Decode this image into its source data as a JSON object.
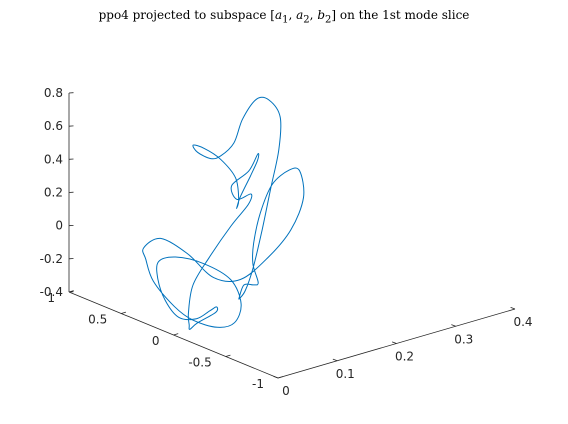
{
  "chart_data": {
    "type": "line",
    "projection": "3d",
    "title": "ppo4 projected to subspace [a1, a2, b2] on the 1st mode slice",
    "title_parts": {
      "prefix": "ppo4 projected to subspace ",
      "var1": "a",
      "sub1": "1",
      "var2": "a",
      "sub2": "2",
      "var3": "b",
      "sub3": "2",
      "suffix": " on the 1st mode slice"
    },
    "axes": {
      "x": {
        "label": "",
        "range": [
          0,
          0.4
        ],
        "ticks": [
          0,
          0.1,
          0.2,
          0.3,
          0.4
        ],
        "tick_labels": [
          "0",
          "0.1",
          "0.2",
          "0.3",
          "0.4"
        ]
      },
      "y": {
        "label": "",
        "range": [
          -1,
          1
        ],
        "ticks": [
          -1,
          -0.5,
          0,
          0.5,
          1
        ],
        "tick_labels": [
          "-1",
          "-0.5",
          "0",
          "0.5",
          "1"
        ]
      },
      "z": {
        "label": "",
        "range": [
          -0.4,
          0.8
        ],
        "ticks": [
          -0.4,
          -0.2,
          0,
          0.2,
          0.4,
          0.6,
          0.8
        ],
        "tick_labels": [
          "-0.4",
          "-0.2",
          "0",
          "0.2",
          "0.4",
          "0.6",
          "0.8"
        ]
      }
    },
    "grid": false,
    "legend": "none",
    "series": [
      {
        "color": "#0072BD",
        "points": [
          [
            0.11,
            0.0,
            -0.3
          ],
          [
            0.13,
            0.05,
            -0.28
          ],
          [
            0.17,
            0.2,
            -0.22
          ],
          [
            0.22,
            0.4,
            -0.1
          ],
          [
            0.27,
            0.6,
            0.05
          ],
          [
            0.31,
            0.75,
            0.2
          ],
          [
            0.33,
            0.85,
            0.35
          ],
          [
            0.32,
            0.9,
            0.45
          ],
          [
            0.29,
            0.85,
            0.5
          ],
          [
            0.24,
            0.7,
            0.47
          ],
          [
            0.19,
            0.5,
            0.43
          ],
          [
            0.15,
            0.4,
            0.42
          ],
          [
            0.13,
            0.38,
            0.43
          ],
          [
            0.12,
            0.45,
            0.46
          ],
          [
            0.125,
            0.52,
            0.48
          ],
          [
            0.14,
            0.5,
            0.45
          ],
          [
            0.15,
            0.4,
            0.4
          ],
          [
            0.14,
            0.2,
            0.35
          ],
          [
            0.11,
            0.0,
            0.3
          ],
          [
            0.08,
            -0.15,
            0.32
          ],
          [
            0.06,
            -0.3,
            0.45
          ],
          [
            0.05,
            -0.45,
            0.62
          ],
          [
            0.045,
            -0.55,
            0.75
          ],
          [
            0.04,
            -0.58,
            0.8
          ],
          [
            0.03,
            -0.55,
            0.7
          ],
          [
            0.01,
            -0.5,
            0.62
          ],
          [
            0.01,
            -0.55,
            0.55
          ],
          [
            0.025,
            -0.6,
            0.58
          ],
          [
            0.02,
            -0.6,
            0.52
          ],
          [
            0.0,
            -0.55,
            0.4
          ],
          [
            -0.02,
            -0.45,
            0.2
          ],
          [
            -0.02,
            -0.3,
            0.0
          ],
          [
            -0.01,
            -0.2,
            -0.2
          ],
          [
            0.0,
            -0.15,
            -0.3
          ],
          [
            0.01,
            -0.1,
            -0.35
          ],
          [
            0.04,
            0.0,
            -0.37
          ],
          [
            0.08,
            0.05,
            -0.36
          ],
          [
            0.09,
            0.1,
            -0.35
          ],
          [
            0.07,
            0.05,
            -0.34
          ],
          [
            0.03,
            -0.05,
            -0.32
          ],
          [
            0.0,
            -0.05,
            -0.28
          ],
          [
            -0.005,
            0.05,
            -0.2
          ],
          [
            0.0,
            0.15,
            -0.1
          ],
          [
            0.01,
            0.2,
            -0.02
          ],
          [
            0.03,
            0.15,
            0.0
          ],
          [
            0.05,
            0.0,
            -0.02
          ],
          [
            0.07,
            -0.15,
            -0.1
          ],
          [
            0.07,
            -0.25,
            -0.22
          ],
          [
            0.05,
            -0.3,
            -0.3
          ],
          [
            0.03,
            -0.25,
            -0.32
          ],
          [
            0.015,
            -0.1,
            -0.3
          ],
          [
            0.01,
            0.05,
            -0.25
          ],
          [
            0.01,
            0.25,
            -0.15
          ],
          [
            0.015,
            0.35,
            -0.05
          ],
          [
            0.02,
            0.4,
            0.0
          ],
          [
            0.04,
            0.35,
            0.05
          ],
          [
            0.05,
            0.15,
            0.0
          ],
          [
            0.05,
            -0.1,
            -0.08
          ],
          [
            0.06,
            -0.3,
            -0.05
          ],
          [
            0.08,
            -0.45,
            0.1
          ],
          [
            0.11,
            -0.5,
            0.25
          ],
          [
            0.14,
            -0.45,
            0.4
          ],
          [
            0.16,
            -0.3,
            0.5
          ],
          [
            0.16,
            -0.2,
            0.48
          ],
          [
            0.14,
            -0.15,
            0.4
          ],
          [
            0.12,
            -0.15,
            0.25
          ],
          [
            0.1,
            -0.2,
            0.1
          ],
          [
            0.09,
            -0.25,
            0.0
          ],
          [
            0.09,
            -0.3,
            -0.1
          ],
          [
            0.1,
            -0.2,
            -0.15
          ],
          [
            0.11,
            -0.05,
            -0.2
          ],
          [
            0.11,
            0.0,
            -0.3
          ]
        ]
      }
    ]
  }
}
